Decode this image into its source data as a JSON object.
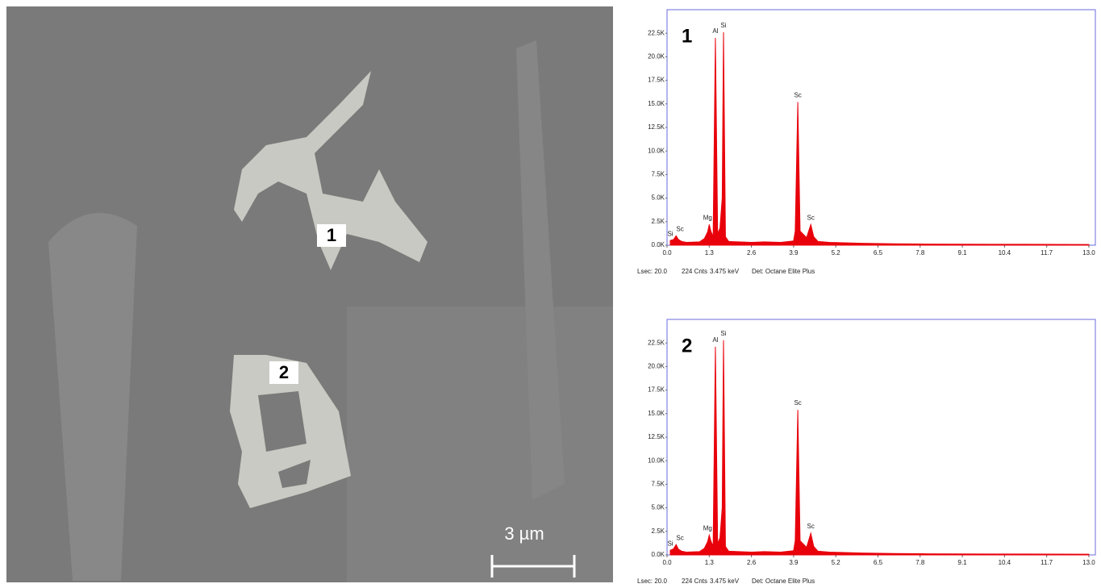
{
  "image": {
    "labels": [
      "1",
      "2"
    ],
    "scale_bar": "3 µm"
  },
  "chart_data": [
    {
      "type": "line",
      "panel_label": "1",
      "x": [
        0.1,
        0.2,
        0.28,
        0.35,
        0.45,
        0.6,
        1.0,
        1.15,
        1.25,
        1.3,
        1.35,
        1.42,
        1.49,
        1.56,
        1.63,
        1.7,
        1.74,
        1.8,
        1.9,
        2.2,
        2.6,
        3.0,
        3.5,
        3.9,
        3.95,
        4.03,
        4.1,
        4.3,
        4.43,
        4.52,
        4.65,
        5.0,
        6.0,
        7.0,
        8.0,
        10.0,
        13.0
      ],
      "series": [
        {
          "color": "#e8000b",
          "values": [
            500,
            600,
            1000,
            600,
            400,
            300,
            350,
            700,
            1400,
            2200,
            1500,
            900,
            22000,
            1200,
            1800,
            5000,
            22600,
            900,
            400,
            350,
            300,
            350,
            300,
            450,
            1500,
            15200,
            1500,
            800,
            2200,
            900,
            400,
            300,
            200,
            150,
            120,
            100,
            80
          ]
        }
      ],
      "annotations": [
        {
          "text": "Si",
          "x": 0.1,
          "y": 500
        },
        {
          "text": "Sc",
          "x": 0.4,
          "y": 1000
        },
        {
          "text": "Mg",
          "x": 1.25,
          "y": 2200
        },
        {
          "text": "Al",
          "x": 1.49,
          "y": 22000
        },
        {
          "text": "Si",
          "x": 1.74,
          "y": 22600
        },
        {
          "text": "Sc",
          "x": 4.03,
          "y": 15200
        },
        {
          "text": "Sc",
          "x": 4.43,
          "y": 2200
        }
      ],
      "xlim": [
        0,
        13.2
      ],
      "xticks": [
        {
          "value": 0,
          "label": "0.0"
        },
        1.3,
        2.6,
        3.9,
        5.2,
        6.5,
        7.8,
        9.1,
        10.4,
        11.7,
        {
          "value": 13,
          "label": "13.0"
        }
      ],
      "ylim": [
        0,
        25000
      ],
      "yticks": [
        {
          "value": 0,
          "label": "0.0K"
        },
        {
          "value": 2500,
          "label": "2.5K"
        },
        {
          "value": 5000,
          "label": "5.0K"
        },
        {
          "value": 7500,
          "label": "7.5K"
        },
        {
          "value": 10000,
          "label": "10.0K"
        },
        {
          "value": 12500,
          "label": "12.5K"
        },
        {
          "value": 15000,
          "label": "15.0K"
        },
        {
          "value": 17500,
          "label": "17.5K"
        },
        {
          "value": 20000,
          "label": "20.0K"
        },
        {
          "value": 22500,
          "label": "22.5K"
        }
      ],
      "footer": [
        "Lsec: 20.0",
        "224 Cnts",
        "3.475 keV",
        "Det: Octane Elite Plus"
      ]
    },
    {
      "type": "line",
      "panel_label": "2",
      "x": [
        0.1,
        0.2,
        0.28,
        0.35,
        0.45,
        0.6,
        1.0,
        1.15,
        1.25,
        1.3,
        1.35,
        1.42,
        1.49,
        1.56,
        1.63,
        1.7,
        1.74,
        1.8,
        1.9,
        2.2,
        2.6,
        3.0,
        3.5,
        3.9,
        3.95,
        4.03,
        4.1,
        4.3,
        4.43,
        4.52,
        4.65,
        5.0,
        6.0,
        7.0,
        8.0,
        10.0,
        13.0
      ],
      "series": [
        {
          "color": "#e8000b",
          "values": [
            500,
            650,
            1100,
            600,
            400,
            300,
            350,
            700,
            1400,
            2100,
            1500,
            900,
            22100,
            1200,
            1800,
            5000,
            22800,
            900,
            400,
            350,
            300,
            350,
            300,
            450,
            1500,
            15400,
            1500,
            800,
            2300,
            900,
            400,
            300,
            200,
            150,
            120,
            100,
            80
          ]
        }
      ],
      "annotations": [
        {
          "text": "Si",
          "x": 0.1,
          "y": 500
        },
        {
          "text": "Sc",
          "x": 0.4,
          "y": 1100
        },
        {
          "text": "Mg",
          "x": 1.25,
          "y": 2100
        },
        {
          "text": "Al",
          "x": 1.49,
          "y": 22100
        },
        {
          "text": "Si",
          "x": 1.74,
          "y": 22800
        },
        {
          "text": "Sc",
          "x": 4.03,
          "y": 15400
        },
        {
          "text": "Sc",
          "x": 4.43,
          "y": 2300
        }
      ],
      "xlim": [
        0,
        13.2
      ],
      "xticks": [
        {
          "value": 0,
          "label": "0.0"
        },
        1.3,
        2.6,
        3.9,
        5.2,
        6.5,
        7.8,
        9.1,
        10.4,
        11.7,
        {
          "value": 13,
          "label": "13.0"
        }
      ],
      "ylim": [
        0,
        25000
      ],
      "yticks": [
        {
          "value": 0,
          "label": "0.0K"
        },
        {
          "value": 2500,
          "label": "2.5K"
        },
        {
          "value": 5000,
          "label": "5.0K"
        },
        {
          "value": 7500,
          "label": "7.5K"
        },
        {
          "value": 10000,
          "label": "10.0K"
        },
        {
          "value": 12500,
          "label": "12.5K"
        },
        {
          "value": 15000,
          "label": "15.0K"
        },
        {
          "value": 17500,
          "label": "17.5K"
        },
        {
          "value": 20000,
          "label": "20.0K"
        },
        {
          "value": 22500,
          "label": "22.5K"
        }
      ],
      "footer": [
        "Lsec: 20.0",
        "224 Cnts",
        "3.475 keV",
        "Det: Octane Elite Plus"
      ]
    }
  ]
}
